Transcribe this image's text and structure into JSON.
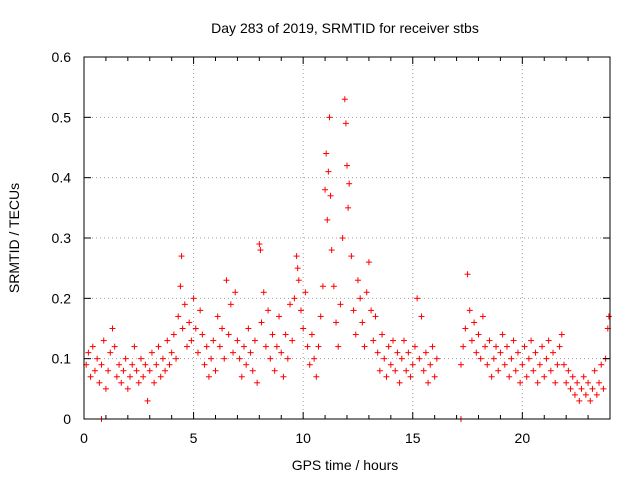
{
  "chart_data": {
    "type": "scatter",
    "title": "Day 283 of 2019, SRMTID for receiver stbs",
    "xlabel": "GPS time / hours",
    "ylabel": "SRMTID / TECUs",
    "xlim": [
      0,
      24
    ],
    "ylim": [
      0,
      0.6
    ],
    "x_ticks": [
      0,
      5,
      10,
      15,
      20
    ],
    "x_tick_labels": [
      "0",
      "5",
      "10",
      "15",
      "20"
    ],
    "y_ticks": [
      0,
      0.1,
      0.2,
      0.3,
      0.4,
      0.5,
      0.6
    ],
    "y_tick_labels": [
      "0",
      "0.1",
      "0.2",
      "0.3",
      "0.4",
      "0.5",
      "0.6"
    ],
    "grid": true,
    "marker": "+",
    "color": "#ff0000",
    "series": [
      {
        "name": "SRMTID",
        "points": [
          [
            0.1,
            0.09
          ],
          [
            0.2,
            0.11
          ],
          [
            0.3,
            0.07
          ],
          [
            0.4,
            0.12
          ],
          [
            0.5,
            0.08
          ],
          [
            0.6,
            0.1
          ],
          [
            0.7,
            0.06
          ],
          [
            0.8,
            0.09
          ],
          [
            0.9,
            0.13
          ],
          [
            1.0,
            0.05
          ],
          [
            1.1,
            0.08
          ],
          [
            1.2,
            0.11
          ],
          [
            1.3,
            0.15
          ],
          [
            1.4,
            0.12
          ],
          [
            1.5,
            0.07
          ],
          [
            1.6,
            0.09
          ],
          [
            1.7,
            0.06
          ],
          [
            1.8,
            0.08
          ],
          [
            1.9,
            0.1
          ],
          [
            2.0,
            0.05
          ],
          [
            2.1,
            0.07
          ],
          [
            2.2,
            0.09
          ],
          [
            2.3,
            0.12
          ],
          [
            2.4,
            0.08
          ],
          [
            2.5,
            0.06
          ],
          [
            2.6,
            0.1
          ],
          [
            2.7,
            0.07
          ],
          [
            2.8,
            0.09
          ],
          [
            2.9,
            0.03
          ],
          [
            3.0,
            0.08
          ],
          [
            3.1,
            0.11
          ],
          [
            3.2,
            0.06
          ],
          [
            3.3,
            0.09
          ],
          [
            3.4,
            0.12
          ],
          [
            3.5,
            0.07
          ],
          [
            3.6,
            0.1
          ],
          [
            3.7,
            0.08
          ],
          [
            3.8,
            0.13
          ],
          [
            3.9,
            0.09
          ],
          [
            4.0,
            0.11
          ],
          [
            4.1,
            0.14
          ],
          [
            4.2,
            0.1
          ],
          [
            4.3,
            0.17
          ],
          [
            4.4,
            0.22
          ],
          [
            4.45,
            0.27
          ],
          [
            4.5,
            0.15
          ],
          [
            4.6,
            0.19
          ],
          [
            4.7,
            0.12
          ],
          [
            4.8,
            0.16
          ],
          [
            4.9,
            0.13
          ],
          [
            5.0,
            0.2
          ],
          [
            5.1,
            0.15
          ],
          [
            5.2,
            0.11
          ],
          [
            5.3,
            0.18
          ],
          [
            5.4,
            0.14
          ],
          [
            5.5,
            0.09
          ],
          [
            5.6,
            0.12
          ],
          [
            5.7,
            0.07
          ],
          [
            5.8,
            0.1
          ],
          [
            5.9,
            0.13
          ],
          [
            6.0,
            0.08
          ],
          [
            6.1,
            0.17
          ],
          [
            6.2,
            0.12
          ],
          [
            6.3,
            0.15
          ],
          [
            6.4,
            0.1
          ],
          [
            6.5,
            0.23
          ],
          [
            6.6,
            0.14
          ],
          [
            6.7,
            0.19
          ],
          [
            6.8,
            0.11
          ],
          [
            6.9,
            0.21
          ],
          [
            7.0,
            0.13
          ],
          [
            7.1,
            0.1
          ],
          [
            7.2,
            0.07
          ],
          [
            7.3,
            0.12
          ],
          [
            7.4,
            0.09
          ],
          [
            7.5,
            0.15
          ],
          [
            7.6,
            0.11
          ],
          [
            7.7,
            0.08
          ],
          [
            7.8,
            0.13
          ],
          [
            7.9,
            0.06
          ],
          [
            8.0,
            0.29
          ],
          [
            8.05,
            0.28
          ],
          [
            8.1,
            0.16
          ],
          [
            8.2,
            0.21
          ],
          [
            8.3,
            0.12
          ],
          [
            8.4,
            0.18
          ],
          [
            8.5,
            0.1
          ],
          [
            8.6,
            0.14
          ],
          [
            8.7,
            0.08
          ],
          [
            8.8,
            0.12
          ],
          [
            8.9,
            0.17
          ],
          [
            9.0,
            0.11
          ],
          [
            9.1,
            0.07
          ],
          [
            9.2,
            0.14
          ],
          [
            9.3,
            0.1
          ],
          [
            9.4,
            0.19
          ],
          [
            9.5,
            0.13
          ],
          [
            9.6,
            0.2
          ],
          [
            9.7,
            0.27
          ],
          [
            9.75,
            0.25
          ],
          [
            9.8,
            0.23
          ],
          [
            9.9,
            0.18
          ],
          [
            10.0,
            0.15
          ],
          [
            10.1,
            0.21
          ],
          [
            10.2,
            0.12
          ],
          [
            10.3,
            0.09
          ],
          [
            10.4,
            0.14
          ],
          [
            10.5,
            0.1
          ],
          [
            10.6,
            0.07
          ],
          [
            10.7,
            0.12
          ],
          [
            10.8,
            0.17
          ],
          [
            10.9,
            0.22
          ],
          [
            11.0,
            0.38
          ],
          [
            11.05,
            0.44
          ],
          [
            11.1,
            0.33
          ],
          [
            11.15,
            0.41
          ],
          [
            11.2,
            0.5
          ],
          [
            11.25,
            0.37
          ],
          [
            11.3,
            0.28
          ],
          [
            11.4,
            0.22
          ],
          [
            11.5,
            0.16
          ],
          [
            11.6,
            0.12
          ],
          [
            11.7,
            0.19
          ],
          [
            11.8,
            0.3
          ],
          [
            11.9,
            0.53
          ],
          [
            11.95,
            0.49
          ],
          [
            12.0,
            0.42
          ],
          [
            12.05,
            0.35
          ],
          [
            12.1,
            0.39
          ],
          [
            12.2,
            0.27
          ],
          [
            12.3,
            0.18
          ],
          [
            12.4,
            0.14
          ],
          [
            12.5,
            0.23
          ],
          [
            12.6,
            0.2
          ],
          [
            12.7,
            0.16
          ],
          [
            12.8,
            0.12
          ],
          [
            12.9,
            0.21
          ],
          [
            13.0,
            0.26
          ],
          [
            13.1,
            0.18
          ],
          [
            13.2,
            0.13
          ],
          [
            13.3,
            0.17
          ],
          [
            13.4,
            0.11
          ],
          [
            13.5,
            0.08
          ],
          [
            13.6,
            0.14
          ],
          [
            13.7,
            0.1
          ],
          [
            13.8,
            0.07
          ],
          [
            13.9,
            0.12
          ],
          [
            14.0,
            0.09
          ],
          [
            14.1,
            0.13
          ],
          [
            14.2,
            0.08
          ],
          [
            14.3,
            0.11
          ],
          [
            14.4,
            0.06
          ],
          [
            14.5,
            0.1
          ],
          [
            14.6,
            0.13
          ],
          [
            14.7,
            0.08
          ],
          [
            14.8,
            0.11
          ],
          [
            14.9,
            0.07
          ],
          [
            15.0,
            0.09
          ],
          [
            15.1,
            0.12
          ],
          [
            15.2,
            0.2
          ],
          [
            15.3,
            0.1
          ],
          [
            15.4,
            0.17
          ],
          [
            15.5,
            0.08
          ],
          [
            15.6,
            0.11
          ],
          [
            15.7,
            0.06
          ],
          [
            15.8,
            0.09
          ],
          [
            15.9,
            0.12
          ],
          [
            16.0,
            0.07
          ],
          [
            16.1,
            0.1
          ],
          [
            17.2,
            0.09
          ],
          [
            17.3,
            0.12
          ],
          [
            17.4,
            0.15
          ],
          [
            17.5,
            0.24
          ],
          [
            17.6,
            0.18
          ],
          [
            17.7,
            0.13
          ],
          [
            17.8,
            0.16
          ],
          [
            17.9,
            0.11
          ],
          [
            18.0,
            0.14
          ],
          [
            18.1,
            0.1
          ],
          [
            18.2,
            0.17
          ],
          [
            18.3,
            0.12
          ],
          [
            18.4,
            0.09
          ],
          [
            18.5,
            0.13
          ],
          [
            18.6,
            0.07
          ],
          [
            18.7,
            0.1
          ],
          [
            18.8,
            0.12
          ],
          [
            18.9,
            0.08
          ],
          [
            19.0,
            0.11
          ],
          [
            19.1,
            0.14
          ],
          [
            19.2,
            0.09
          ],
          [
            19.3,
            0.12
          ],
          [
            19.4,
            0.07
          ],
          [
            19.5,
            0.1
          ],
          [
            19.6,
            0.13
          ],
          [
            19.7,
            0.08
          ],
          [
            19.8,
            0.11
          ],
          [
            19.9,
            0.06
          ],
          [
            20.0,
            0.09
          ],
          [
            20.1,
            0.12
          ],
          [
            20.2,
            0.07
          ],
          [
            20.3,
            0.1
          ],
          [
            20.4,
            0.13
          ],
          [
            20.5,
            0.08
          ],
          [
            20.6,
            0.11
          ],
          [
            20.7,
            0.06
          ],
          [
            20.8,
            0.09
          ],
          [
            20.9,
            0.12
          ],
          [
            21.0,
            0.07
          ],
          [
            21.1,
            0.1
          ],
          [
            21.2,
            0.13
          ],
          [
            21.3,
            0.08
          ],
          [
            21.4,
            0.11
          ],
          [
            21.5,
            0.06
          ],
          [
            21.6,
            0.09
          ],
          [
            21.7,
            0.12
          ],
          [
            21.8,
            0.14
          ],
          [
            21.9,
            0.09
          ],
          [
            22.0,
            0.06
          ],
          [
            22.1,
            0.08
          ],
          [
            22.2,
            0.05
          ],
          [
            22.3,
            0.07
          ],
          [
            22.4,
            0.04
          ],
          [
            22.5,
            0.06
          ],
          [
            22.6,
            0.03
          ],
          [
            22.7,
            0.05
          ],
          [
            22.8,
            0.07
          ],
          [
            22.9,
            0.04
          ],
          [
            23.0,
            0.06
          ],
          [
            23.1,
            0.03
          ],
          [
            23.2,
            0.05
          ],
          [
            23.3,
            0.08
          ],
          [
            23.4,
            0.04
          ],
          [
            23.5,
            0.06
          ],
          [
            23.6,
            0.09
          ],
          [
            23.7,
            0.05
          ],
          [
            23.8,
            0.1
          ],
          [
            23.9,
            0.15
          ],
          [
            23.95,
            0.17
          ],
          [
            0.8,
            0.0
          ],
          [
            17.2,
            0.0
          ]
        ]
      }
    ]
  }
}
